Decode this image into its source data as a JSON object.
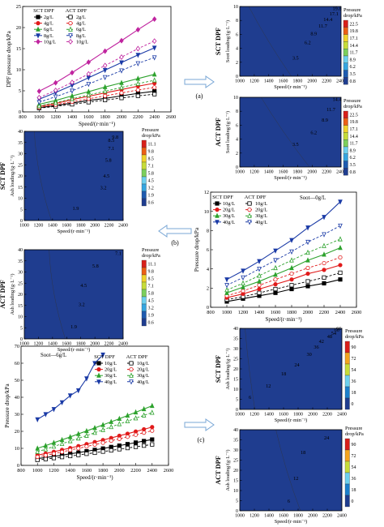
{
  "figure": {
    "panel_labels": [
      "(a)",
      "(b)",
      "(c)"
    ],
    "arrow_color": "#7aa7d6"
  },
  "palette": {
    "contour_colors": [
      "#1f3d8f",
      "#1e5bb0",
      "#1c7fcb",
      "#35a6e0",
      "#6cd0ee",
      "#5cc7a8",
      "#7ccf5c",
      "#c6dc38",
      "#f1d22a",
      "#f3a41e",
      "#ec5f14",
      "#d9201a"
    ],
    "line_colors": [
      "#000000",
      "#e11b1b",
      "#2da22d",
      "#1a3aa6",
      "#c0249f"
    ]
  },
  "chart_data": [
    {
      "id": "line-a",
      "type": "line",
      "ylabel": "DPF pressure drop/kPa",
      "xlabel": "Speed/(r·min⁻¹)",
      "xlim": [
        800,
        2600
      ],
      "ylim": [
        0,
        25
      ],
      "xticks": [
        "800",
        "1000",
        "1200",
        "1400",
        "1600",
        "1800",
        "2000",
        "2200",
        "2400",
        "2600"
      ],
      "yticks": [
        "0",
        "5",
        "10",
        "15",
        "20",
        "25"
      ],
      "legend_headers": [
        "SCT DPF",
        "ACT DPF"
      ],
      "x": [
        1000,
        1200,
        1400,
        1600,
        1800,
        2000,
        2200,
        2400
      ],
      "series": [
        {
          "name": "2g/L",
          "color": "#000000",
          "marker": "square",
          "sct": [
            1.0,
            1.5,
            2.1,
            2.7,
            3.2,
            3.8,
            4.4,
            4.9
          ],
          "act": [
            0.9,
            1.3,
            1.8,
            2.3,
            2.8,
            3.3,
            3.8,
            4.2
          ]
        },
        {
          "name": "4g/L",
          "color": "#e11b1b",
          "marker": "circle",
          "sct": [
            1.3,
            2.0,
            2.9,
            3.7,
            4.5,
            5.3,
            6.1,
            6.8
          ],
          "act": [
            1.1,
            1.7,
            2.4,
            3.1,
            3.8,
            4.5,
            5.2,
            5.8
          ]
        },
        {
          "name": "6g/L",
          "color": "#2da22d",
          "marker": "triangle",
          "sct": [
            1.8,
            2.7,
            3.8,
            4.8,
            5.9,
            6.9,
            7.9,
            8.9
          ],
          "act": [
            1.4,
            2.2,
            3.1,
            4.0,
            4.9,
            5.8,
            6.7,
            7.5
          ]
        },
        {
          "name": "8g/L",
          "color": "#1a3aa6",
          "marker": "triangle-down",
          "sct": [
            3.0,
            4.6,
            6.3,
            8.1,
            9.9,
            11.7,
            13.5,
            15.2
          ],
          "act": [
            2.3,
            3.6,
            5.0,
            6.6,
            8.2,
            9.8,
            11.5,
            12.9
          ]
        },
        {
          "name": "10g/L",
          "color": "#c0249f",
          "marker": "diamond",
          "sct": [
            4.9,
            6.9,
            9.3,
            11.8,
            14.4,
            16.9,
            19.5,
            22.0
          ],
          "act": [
            3.4,
            5.1,
            7.0,
            9.0,
            11.0,
            13.0,
            15.0,
            16.8
          ]
        }
      ]
    },
    {
      "id": "contour-a-sct",
      "type": "heatmap",
      "ylabel_group": "SCT DPF",
      "ylabel": "Soot loading/(g·L⁻¹)",
      "xlabel": "Speed/(r·min⁻¹)",
      "xticks": [
        "1000",
        "1200",
        "1400",
        "1600",
        "1800",
        "2000",
        "2200",
        "2400"
      ],
      "yticks": [
        "0",
        "2",
        "4",
        "6",
        "8",
        "10"
      ],
      "legend_title": "Pressure drop/kPa",
      "legend_levels": [
        "22.5",
        "19.8",
        "17.1",
        "14.4",
        "11.7",
        "8.9",
        "6.2",
        "3.5",
        "0.8"
      ],
      "labels": [
        "3.5",
        "6.2",
        "8.9",
        "11.7",
        "14.4",
        "17.1",
        "19.8"
      ]
    },
    {
      "id": "contour-a-act",
      "type": "heatmap",
      "ylabel_group": "ACT DPF",
      "ylabel": "Soot loading/(g·L⁻¹)",
      "xlabel": "Speed/(r·min⁻¹)",
      "xticks": [
        "1000",
        "1200",
        "1400",
        "1600",
        "1800",
        "2000",
        "2200",
        "2400"
      ],
      "yticks": [
        "0",
        "2",
        "4",
        "6",
        "8",
        "10"
      ],
      "legend_title": "Pressure drop/kPa",
      "legend_levels": [
        "22.5",
        "19.8",
        "17.1",
        "14.4",
        "11.7",
        "8.9",
        "6.2",
        "3.5",
        "0.8"
      ],
      "labels": [
        "3.5",
        "6.2",
        "8.9",
        "11.7",
        "14.4"
      ]
    },
    {
      "id": "contour-b-sct",
      "type": "heatmap",
      "ylabel_group": "SCT DPF",
      "ylabel": "Ash loading/(g·L⁻¹)",
      "xlabel": "Speed/(r·min⁻¹)",
      "xticks": [
        "1000",
        "1200",
        "1400",
        "1600",
        "1800",
        "2000",
        "2200",
        "2400"
      ],
      "yticks": [
        "0",
        "5",
        "10",
        "15",
        "20",
        "25",
        "30",
        "35",
        "40"
      ],
      "legend_title": "Pressure drop/kPa",
      "legend_levels": [
        "11.1",
        "9.8",
        "8.5",
        "7.1",
        "5.8",
        "4.5",
        "3.2",
        "1.9",
        "0.6"
      ],
      "labels": [
        "1.9",
        "3.2",
        "4.5",
        "5.8",
        "7.1",
        "8.5",
        "9.8"
      ]
    },
    {
      "id": "contour-b-act",
      "type": "heatmap",
      "ylabel_group": "ACT DPF",
      "ylabel": "Ash loading/(g·L⁻¹)",
      "xlabel": "Speed/(r·min⁻¹)",
      "xticks": [
        "1000",
        "1200",
        "1400",
        "1600",
        "1800",
        "2000",
        "2200",
        "2400"
      ],
      "yticks": [
        "0",
        "5",
        "10",
        "15",
        "20",
        "25",
        "30",
        "35",
        "40"
      ],
      "legend_title": "Pressure drop/kPa",
      "legend_levels": [
        "11.1",
        "9.8",
        "8.5",
        "7.1",
        "5.8",
        "4.5",
        "3.2",
        "1.9",
        "0.6"
      ],
      "labels": [
        "1.9",
        "3.2",
        "4.5",
        "5.8",
        "7.1"
      ]
    },
    {
      "id": "line-b",
      "type": "line",
      "ylabel": "Pressure drop/kPa",
      "xlabel": "Speed/(r·min⁻¹)",
      "annotation": "Soot—0g/L",
      "xlim": [
        800,
        2600
      ],
      "ylim": [
        0,
        12
      ],
      "xticks": [
        "800",
        "1000",
        "1200",
        "1400",
        "1600",
        "1800",
        "2000",
        "2200",
        "2400",
        "2600"
      ],
      "yticks": [
        "0",
        "2",
        "4",
        "6",
        "8",
        "10",
        "12"
      ],
      "legend_headers": [
        "SCT DPF",
        "ACT DPF"
      ],
      "x": [
        1000,
        1200,
        1400,
        1600,
        1800,
        2000,
        2200,
        2400
      ],
      "series": [
        {
          "name": "10g/L",
          "color": "#000000",
          "marker": "square",
          "sct": [
            0.6,
            0.9,
            1.2,
            1.5,
            1.9,
            2.2,
            2.5,
            2.9
          ],
          "act": [
            0.8,
            1.1,
            1.5,
            1.9,
            2.3,
            2.7,
            3.1,
            3.6
          ]
        },
        {
          "name": "20g/L",
          "color": "#e11b1b",
          "marker": "circle",
          "sct": [
            1.0,
            1.4,
            1.9,
            2.4,
            2.9,
            3.5,
            3.9,
            4.4
          ],
          "act": [
            1.2,
            1.7,
            2.3,
            2.9,
            3.5,
            4.1,
            4.6,
            5.2
          ]
        },
        {
          "name": "30g/L",
          "color": "#2da22d",
          "marker": "triangle",
          "sct": [
            1.5,
            2.1,
            2.7,
            3.4,
            4.1,
            4.9,
            5.5,
            6.2
          ],
          "act": [
            1.8,
            2.5,
            3.3,
            4.1,
            4.9,
            5.7,
            6.4,
            7.1
          ]
        },
        {
          "name": "40g/L",
          "color": "#1a3aa6",
          "marker": "triangle-down",
          "sct": [
            2.9,
            3.8,
            4.8,
            5.9,
            7.0,
            8.3,
            9.4,
            11.0
          ],
          "act": [
            2.3,
            3.1,
            4.0,
            4.9,
            5.8,
            6.8,
            7.6,
            8.5
          ]
        }
      ]
    },
    {
      "id": "line-c",
      "type": "line",
      "ylabel": "Pressure drop/kPa",
      "xlabel": "Speed/(r·min⁻¹)",
      "annotation": "Soot—6g/L",
      "xlim": [
        800,
        2600
      ],
      "ylim": [
        0,
        70
      ],
      "xticks": [
        "800",
        "1000",
        "1200",
        "1400",
        "1600",
        "1800",
        "2000",
        "2200",
        "2400",
        "2600"
      ],
      "yticks": [
        "0",
        "10",
        "20",
        "30",
        "40",
        "50",
        "60",
        "70"
      ],
      "legend_headers": [
        "SCT DPF",
        "ACT DPF"
      ],
      "x": [
        1000,
        1100,
        1200,
        1300,
        1400,
        1500,
        1600,
        1700,
        1800,
        1900,
        2000,
        2100,
        2200,
        2300,
        2400
      ],
      "series": [
        {
          "name": "10g/L",
          "color": "#000000",
          "marker": "square",
          "sct": [
            4.0,
            4.6,
            5.3,
            6.0,
            6.8,
            7.5,
            8.3,
            9.1,
            9.9,
            10.8,
            11.6,
            12.5,
            13.4,
            14.3,
            15.2
          ],
          "act": [
            3.2,
            3.7,
            4.3,
            4.9,
            5.5,
            6.1,
            6.8,
            7.4,
            8.1,
            8.8,
            9.5,
            10.2,
            10.9,
            11.6,
            12.3
          ]
        },
        {
          "name": "20g/L",
          "color": "#e11b1b",
          "marker": "circle",
          "sct": [
            6.0,
            7.0,
            8.0,
            9.1,
            10.2,
            11.3,
            12.5,
            13.7,
            14.9,
            16.1,
            17.4,
            18.6,
            19.9,
            21.2,
            22.5
          ],
          "act": [
            5.0,
            5.9,
            6.9,
            7.9,
            9.0,
            10.0,
            11.1,
            12.2,
            13.3,
            14.5,
            15.6,
            16.8,
            18.0,
            19.2,
            20.4
          ]
        },
        {
          "name": "30g/L",
          "color": "#2da22d",
          "marker": "triangle",
          "sct": [
            10.0,
            11.6,
            13.3,
            15.0,
            16.7,
            18.5,
            20.2,
            22.0,
            23.8,
            25.6,
            27.4,
            29.3,
            31.2,
            33.1,
            35.0
          ],
          "act": [
            8.0,
            9.5,
            11.1,
            12.7,
            14.3,
            15.9,
            17.5,
            19.2,
            20.9,
            22.6,
            24.3,
            26.0,
            27.7,
            29.4,
            31.0
          ]
        },
        {
          "name": "40g/L",
          "color": "#1a3aa6",
          "marker": "triangle-down",
          "sct": [
            27,
            30,
            33,
            37,
            41,
            44,
            51,
            60,
            65,
            null,
            null,
            null,
            null,
            null,
            null
          ],
          "act": [
            null,
            null,
            null,
            null,
            null,
            null,
            null,
            null,
            null,
            null,
            null,
            null,
            null,
            null,
            null
          ]
        }
      ]
    },
    {
      "id": "contour-c-sct",
      "type": "heatmap",
      "ylabel_group": "SCT DPF",
      "ylabel": "Ash loading/(g·L⁻¹)",
      "xlabel": "Speed/(r·min⁻¹)",
      "xticks": [
        "1000",
        "1200",
        "1400",
        "1600",
        "1800",
        "2000",
        "2200",
        "2400"
      ],
      "yticks": [
        "0",
        "5",
        "10",
        "15",
        "20",
        "25",
        "30",
        "35",
        "40"
      ],
      "legend_title": "Pressure drop/kPa",
      "legend_levels": [
        "90",
        "72",
        "54",
        "36",
        "18",
        "0"
      ],
      "labels": [
        "6",
        "12",
        "18",
        "24",
        "30",
        "36",
        "42",
        "48",
        "54",
        "60",
        "66"
      ]
    },
    {
      "id": "contour-c-act",
      "type": "heatmap",
      "ylabel_group": "ACT DPF",
      "ylabel": "Ash loading/(g·L⁻¹)",
      "xlabel": "Speed/(r·min⁻¹)",
      "xticks": [
        "1000",
        "1200",
        "1400",
        "1600",
        "1800",
        "2000",
        "2200",
        "2400"
      ],
      "yticks": [
        "0",
        "5",
        "10",
        "15",
        "20",
        "25",
        "30",
        "35",
        "40"
      ],
      "legend_title": "Pressure drop/kPa",
      "legend_levels": [
        "90",
        "72",
        "54",
        "36",
        "18",
        "0"
      ],
      "labels": [
        "6",
        "12",
        "18",
        "24"
      ]
    }
  ]
}
